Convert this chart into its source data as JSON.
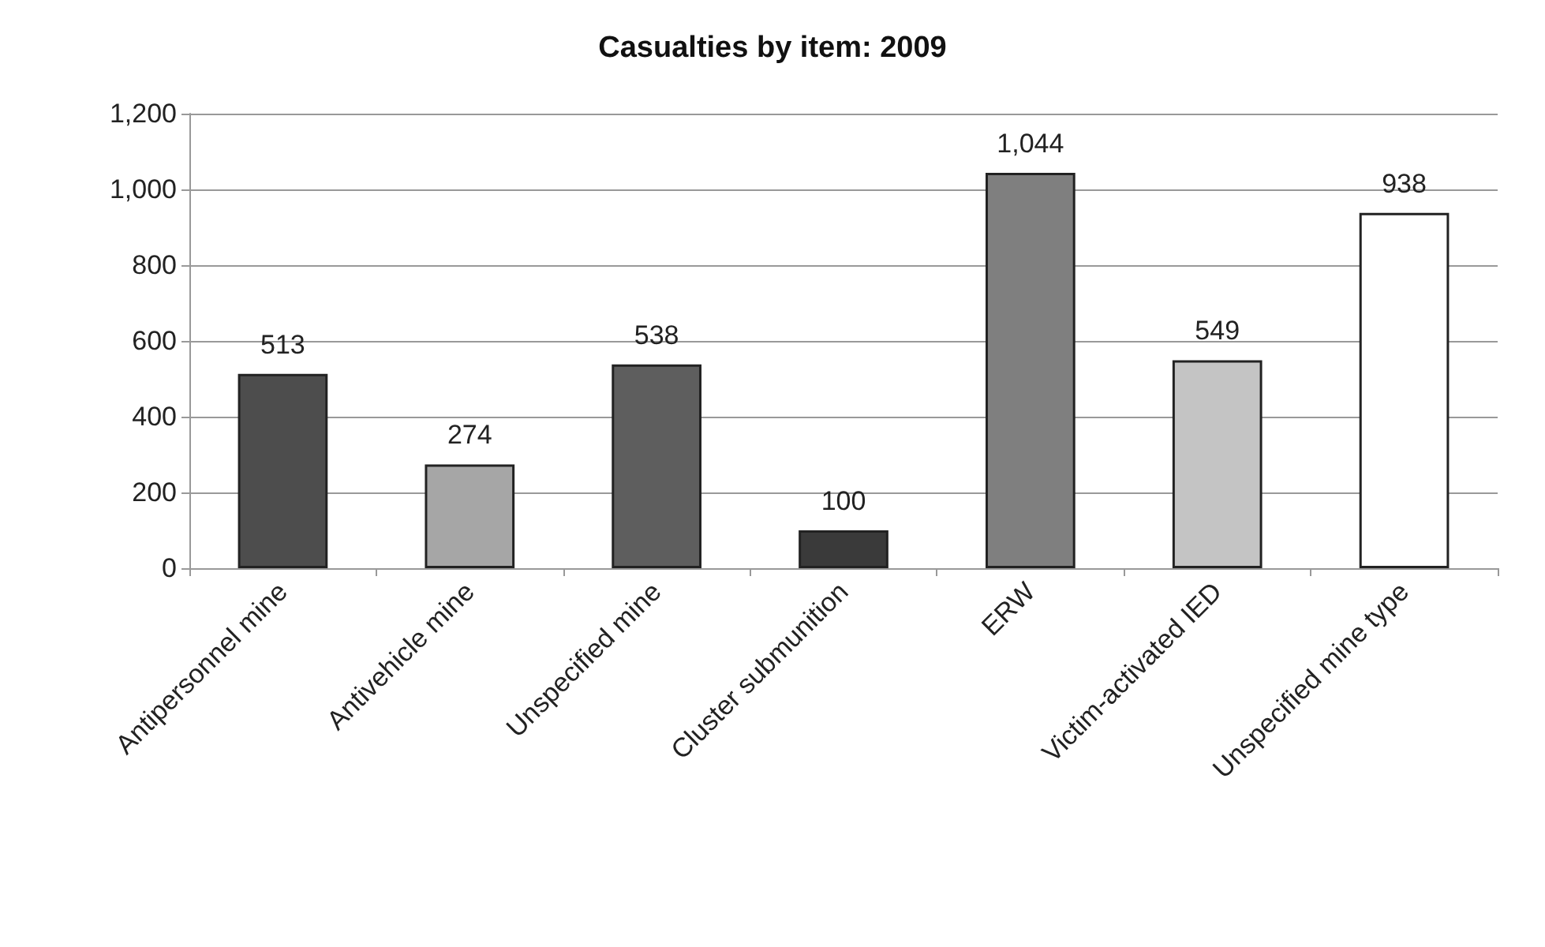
{
  "chart_data": {
    "type": "bar",
    "title": "Casualties by item: 2009",
    "categories": [
      "Antipersonnel mine",
      "Antivehicle mine",
      "Unspecified mine",
      "Cluster submunition",
      "ERW",
      "Victim-activated IED",
      "Unspecified mine type"
    ],
    "values": [
      513,
      274,
      538,
      100,
      1044,
      549,
      938
    ],
    "colors": [
      "#4d4d4d",
      "#a6a6a6",
      "#5e5e5e",
      "#3a3a3a",
      "#7f7f7f",
      "#c4c4c4",
      "#ffffff"
    ],
    "ylim": [
      0,
      1200
    ],
    "yticks": [
      0,
      {
        "value": 200,
        "label": "200"
      },
      {
        "value": 400,
        "label": "400"
      },
      {
        "value": 600,
        "label": "600"
      },
      {
        "value": 800,
        "label": "800"
      },
      {
        "value": 1000,
        "label": "1,000"
      },
      {
        "value": 1200,
        "label": "1,200"
      }
    ],
    "value_labels": [
      "513",
      "274",
      "538",
      "100",
      "1,044",
      "549",
      "938"
    ],
    "grid": "y"
  }
}
